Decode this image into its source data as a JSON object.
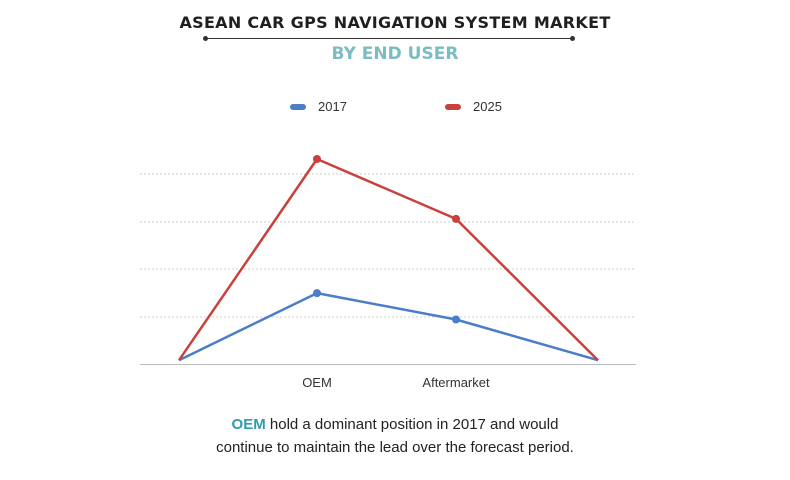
{
  "chart_data": {
    "type": "line",
    "title": "ASEAN CAR GPS NAVIGATION SYSTEM MARKET",
    "subtitle": "BY END USER",
    "categories": [
      "",
      "OEM",
      "Aftermarket",
      ""
    ],
    "series": [
      {
        "name": "2017",
        "values": [
          0.1,
          1.5,
          0.95,
          0.1
        ],
        "color": "#4a7ec7"
      },
      {
        "name": "2025",
        "values": [
          0.1,
          4.3,
          3.05,
          0.1
        ],
        "color": "#c9413c"
      }
    ],
    "ylim": [
      0,
      4.3
    ],
    "grid": true,
    "legend": "top"
  },
  "footnote": {
    "highlight": "OEM",
    "line1_rest": " hold a dominant position in 2017 and would",
    "line2": "continue to maintain the lead over the forecast period."
  },
  "colors": {
    "subtitle": "#7bbcc2",
    "highlight": "#2f9bab",
    "grid": "#cccccc"
  }
}
